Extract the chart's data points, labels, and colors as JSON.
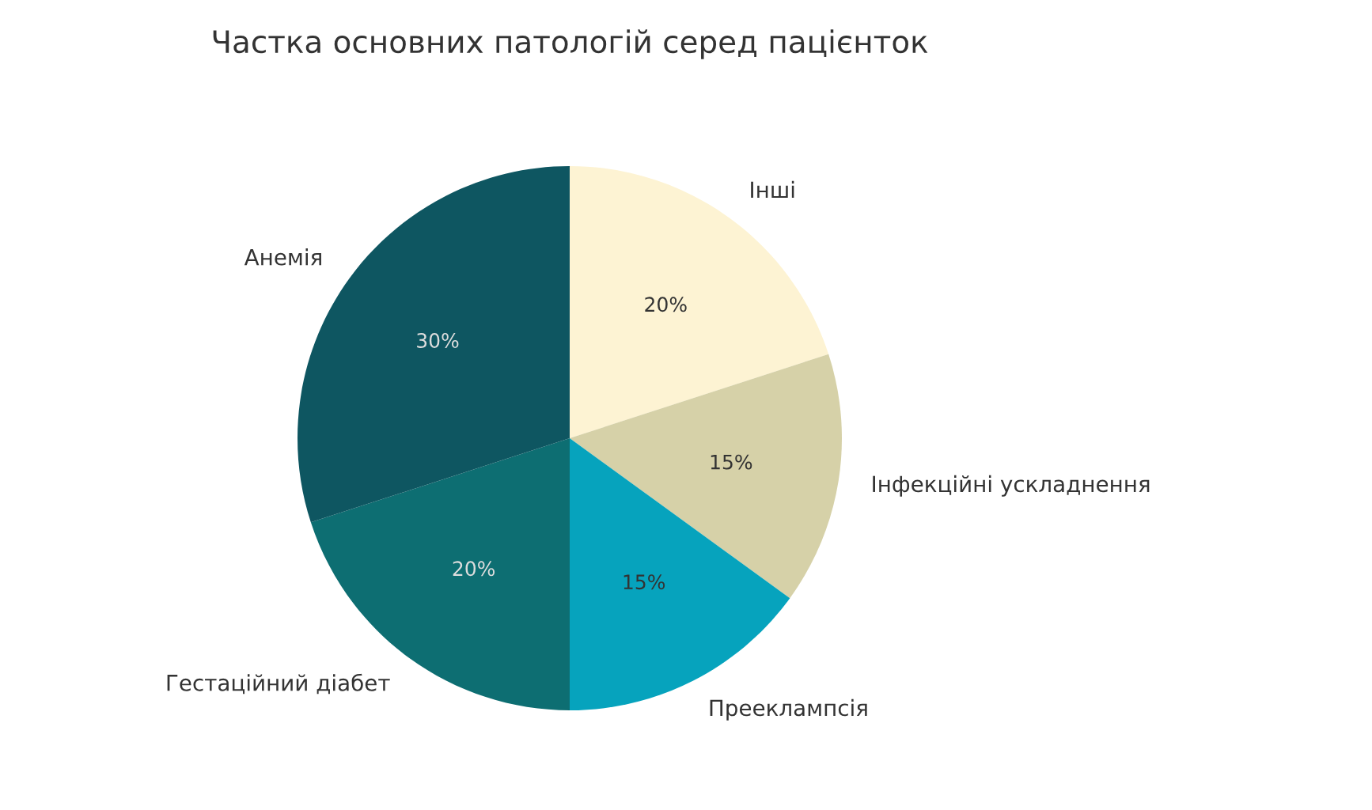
{
  "chart_data": {
    "type": "pie",
    "title": "Частка основних патологій серед пацієнток",
    "categories": [
      "Інші",
      "Інфекційні ускладнення",
      "Прееклампсія",
      "Гестаційний діабет",
      "Анемія"
    ],
    "values": [
      20,
      15,
      15,
      20,
      30
    ],
    "colors": [
      "#fdf3d3",
      "#d6d1a8",
      "#06a3bd",
      "#0d6e72",
      "#0e5661"
    ],
    "value_labels": [
      "20%",
      "15%",
      "15%",
      "20%",
      "30%"
    ],
    "legend": false
  }
}
